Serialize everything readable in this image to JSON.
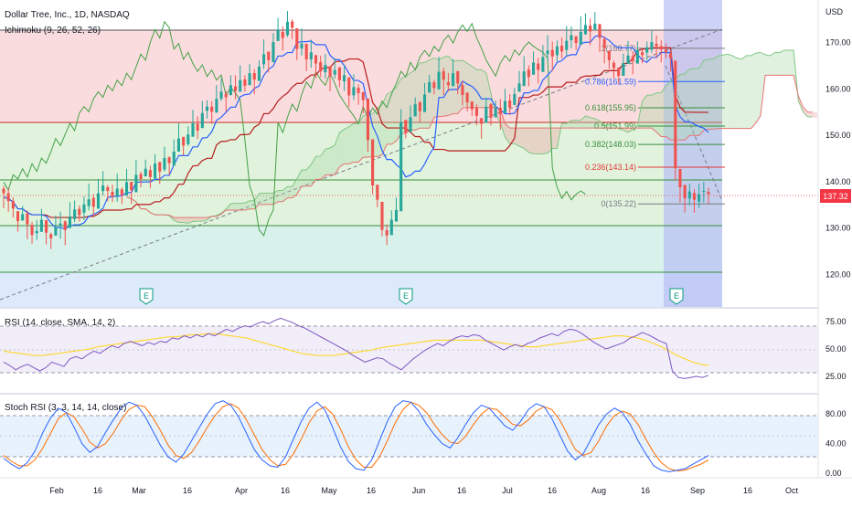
{
  "header": {
    "title": "Dollar Tree, Inc., 1D, NASDAQ",
    "indicator": "Ichimoku (9, 26, 52, 26)"
  },
  "price_axis": {
    "currency": "USD",
    "ticks": [
      "170.00",
      "160.00",
      "150.00",
      "140.00",
      "130.00",
      "120.00"
    ],
    "last_price": "137.32"
  },
  "rsi_panel": {
    "label": "RSI (14, close, SMA, 14, 2)",
    "ticks": [
      "75.00",
      "50.00",
      "25.00"
    ]
  },
  "stoch_panel": {
    "label": "Stoch RSI (3, 3, 14, 14, close)",
    "ticks": [
      "80.00",
      "40.00",
      "0.00"
    ]
  },
  "time_axis": {
    "ticks": [
      "Feb",
      "16",
      "Mar",
      "16",
      "Apr",
      "16",
      "May",
      "16",
      "Jun",
      "16",
      "Jul",
      "16",
      "Aug",
      "16",
      "Sep",
      "16",
      "Oct"
    ]
  },
  "earnings_markers": [
    "E",
    "E",
    "E"
  ],
  "fib_levels": [
    {
      "label": "1(168.77)",
      "color": "#787b86"
    },
    {
      "label": "0.786(161.59)",
      "color": "#2962ff"
    },
    {
      "label": "0.618(155.95)",
      "color": "#388e3c"
    },
    {
      "label": "0.5(151.99)",
      "color": "#388e3c"
    },
    {
      "label": "0.382(148.03)",
      "color": "#388e3c"
    },
    {
      "label": "0.236(143.14)",
      "color": "#e53935"
    },
    {
      "label": "0(135.22)",
      "color": "#787b86"
    }
  ],
  "colors": {
    "bull": "#26a69a",
    "bear": "#ef5350",
    "tenkan": "#2962ff",
    "kijun": "#b71c1c",
    "chikou": "#43a047",
    "rsi_line": "#7e57c2",
    "rsi_ma": "#fdd835",
    "stoch_k": "#2962ff",
    "stoch_d": "#ff6d00",
    "last_price_bg": "#f23645"
  },
  "chart_data": {
    "type": "candlestick",
    "title": "Dollar Tree, Inc., 1D, NASDAQ",
    "price_range": [
      113,
      178
    ],
    "closes": [
      137.5,
      135.8,
      134.2,
      131.5,
      133.0,
      130.8,
      128.5,
      129.4,
      131.8,
      129.0,
      127.8,
      130.2,
      131.0,
      129.6,
      132.5,
      134.0,
      132.8,
      135.1,
      136.2,
      134.6,
      137.5,
      139.2,
      138.0,
      136.8,
      138.5,
      137.1,
      139.9,
      138.2,
      141.5,
      140.6,
      142.8,
      141.0,
      143.9,
      142.2,
      145.1,
      144.0,
      146.5,
      149.3,
      147.8,
      150.2,
      152.6,
      151.0,
      154.8,
      156.2,
      155.1,
      157.9,
      159.4,
      158.2,
      160.8,
      159.6,
      161.9,
      160.7,
      163.4,
      162.0,
      164.8,
      167.5,
      166.2,
      170.1,
      172.8,
      171.0,
      174.5,
      173.2,
      168.6,
      169.8,
      166.4,
      167.9,
      165.5,
      163.8,
      165.2,
      162.7,
      164.1,
      161.9,
      163.0,
      158.6,
      160.4,
      159.1,
      157.6,
      149.0,
      139.2,
      136.1,
      129.6,
      128.4,
      131.8,
      133.9,
      152.8,
      150.6,
      153.9,
      156.7,
      155.2,
      158.8,
      161.5,
      160.2,
      163.7,
      162.0,
      160.8,
      163.4,
      161.2,
      158.7,
      157.1,
      155.6,
      154.2,
      152.5,
      156.2,
      153.8,
      155.9,
      154.6,
      157.4,
      156.0,
      158.9,
      161.2,
      163.8,
      162.6,
      165.7,
      164.1,
      166.9,
      168.3,
      167.0,
      169.2,
      168.1,
      170.4,
      171.6,
      169.9,
      172.3,
      173.8,
      172.4,
      174.1,
      171.0,
      168.8,
      166.2,
      164.5,
      162.8,
      165.6,
      167.2,
      166.0,
      168.4,
      167.3,
      169.0,
      170.1,
      169.2,
      168.5,
      167.9,
      166.6,
      142.9,
      138.8,
      136.4,
      137.9,
      136.1,
      137.3,
      138.0,
      137.32
    ],
    "rsi": {
      "range": [
        10,
        85
      ],
      "values": [
        38,
        35,
        31,
        34,
        36,
        33,
        30,
        33,
        38,
        36,
        34,
        41,
        43,
        41,
        45,
        48,
        46,
        50,
        53,
        51,
        55,
        57,
        55,
        53,
        56,
        54,
        57,
        56,
        60,
        59,
        62,
        60,
        63,
        61,
        64,
        62,
        65,
        68,
        66,
        69,
        71,
        70,
        73,
        75,
        73,
        76,
        78,
        76,
        74,
        71,
        69,
        66,
        63,
        60,
        57,
        54,
        51,
        48,
        44,
        41,
        38,
        40,
        42,
        41,
        37,
        34,
        31,
        36,
        41,
        45,
        49,
        52,
        55,
        53,
        57,
        60,
        62,
        61,
        63,
        62,
        58,
        55,
        52,
        49,
        52,
        54,
        52,
        55,
        57,
        60,
        62,
        64,
        62,
        66,
        68,
        67,
        64,
        60,
        56,
        53,
        50,
        52,
        54,
        56,
        60,
        62,
        65,
        63,
        60,
        57,
        55,
        30,
        24,
        23,
        24,
        25,
        24,
        26
      ],
      "ma": [
        48,
        47,
        46,
        45,
        44,
        44,
        45,
        46,
        47,
        48,
        49,
        50,
        52,
        53,
        54,
        55,
        56,
        57,
        58,
        59,
        60,
        61,
        61,
        62,
        63,
        63,
        64,
        64,
        63,
        62,
        61,
        60,
        58,
        56,
        54,
        52,
        50,
        48,
        46,
        45,
        44,
        44,
        44,
        45,
        46,
        47,
        48,
        49,
        51,
        52,
        53,
        54,
        55,
        56,
        57,
        58,
        58,
        58,
        58,
        58,
        58,
        58,
        57,
        56,
        55,
        54,
        53,
        52,
        52,
        53,
        54,
        55,
        56,
        57,
        58,
        59,
        60,
        61,
        62,
        62,
        61,
        60,
        58,
        55,
        52,
        48,
        44,
        41,
        38,
        36,
        35
      ]
    },
    "stoch": {
      "range": [
        -5,
        105
      ],
      "k": [
        20,
        12,
        6,
        14,
        30,
        55,
        75,
        88,
        82,
        62,
        40,
        28,
        36,
        55,
        72,
        88,
        96,
        92,
        78,
        58,
        38,
        22,
        15,
        26,
        44,
        62,
        80,
        94,
        98,
        92,
        76,
        54,
        32,
        18,
        10,
        8,
        22,
        46,
        70,
        88,
        96,
        86,
        62,
        36,
        16,
        6,
        4,
        18,
        44,
        70,
        90,
        98,
        96,
        84,
        66,
        52,
        40,
        34,
        48,
        66,
        82,
        92,
        88,
        76,
        64,
        58,
        70,
        86,
        94,
        90,
        74,
        52,
        30,
        18,
        26,
        46,
        66,
        80,
        88,
        82,
        66,
        44,
        26,
        10,
        4,
        2,
        4,
        6,
        12,
        18,
        24
      ],
      "d": [
        24,
        16,
        10,
        10,
        18,
        34,
        54,
        74,
        82,
        76,
        60,
        42,
        34,
        40,
        54,
        72,
        86,
        92,
        90,
        76,
        58,
        38,
        24,
        20,
        28,
        44,
        62,
        78,
        90,
        94,
        88,
        72,
        52,
        32,
        18,
        10,
        12,
        26,
        46,
        68,
        84,
        90,
        80,
        60,
        36,
        18,
        8,
        8,
        22,
        44,
        68,
        86,
        96,
        92,
        82,
        66,
        52,
        42,
        40,
        50,
        66,
        80,
        88,
        86,
        76,
        66,
        64,
        72,
        84,
        90,
        86,
        72,
        52,
        32,
        24,
        28,
        44,
        64,
        78,
        84,
        80,
        66,
        46,
        28,
        14,
        6,
        3,
        4,
        8,
        12,
        18
      ]
    }
  }
}
